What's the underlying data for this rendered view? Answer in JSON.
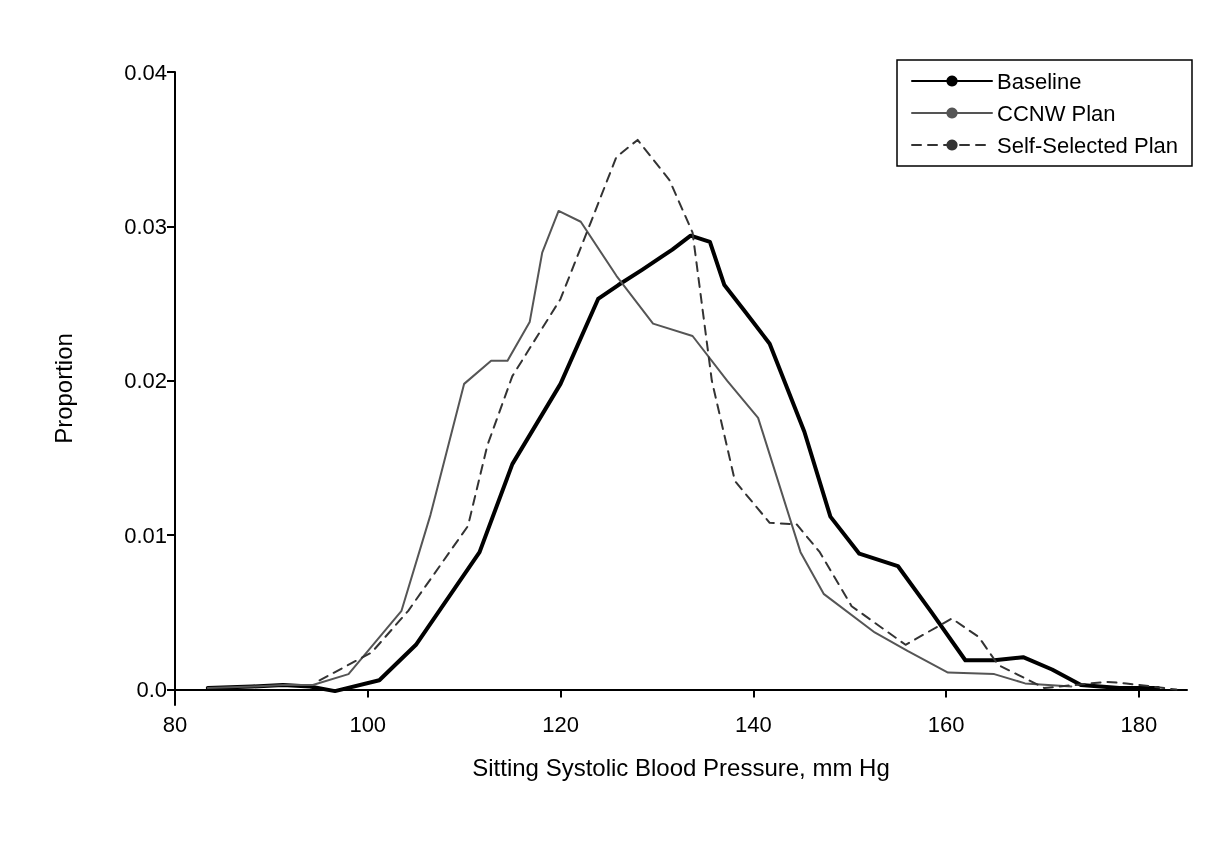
{
  "chart_data": {
    "type": "line",
    "xlabel": "Sitting Systolic Blood Pressure, mm Hg",
    "ylabel": "Proportion",
    "xlim": [
      80,
      185
    ],
    "xticks": [
      80,
      100,
      120,
      140,
      160,
      180
    ],
    "ylim": [
      -0.001,
      0.04
    ],
    "yticks": [
      {
        "value": 0,
        "label": "0.0"
      },
      0.01,
      0.02,
      0.03,
      0.04
    ],
    "grid": false,
    "legend": "top right",
    "marker": "none",
    "series": [
      {
        "name": "Baseline",
        "color": "#000000",
        "line_style": "solid",
        "x": [
          83.4,
          88,
          91.2,
          94,
          96.6,
          101.2,
          105,
          111.6,
          115,
          120,
          123.9,
          126,
          128.5,
          131.6,
          133.5,
          135.5,
          137,
          139,
          141.7,
          145.3,
          148,
          151,
          155,
          158.5,
          162,
          165,
          168,
          171,
          174,
          178,
          182
        ],
        "values": [
          0.0001,
          0.0002,
          0.0003,
          0.0002,
          -0.0001,
          0.0006,
          0.0029,
          0.0089,
          0.0146,
          0.0198,
          0.0253,
          0.0262,
          0.0272,
          0.0285,
          0.0294,
          0.029,
          0.0262,
          0.0246,
          0.0224,
          0.0167,
          0.0112,
          0.0088,
          0.008,
          0.005,
          0.0019,
          0.0019,
          0.0021,
          0.0013,
          0.0003,
          0.0001,
          0.0001
        ]
      },
      {
        "name": "CCNW Plan",
        "color": "#555555",
        "line_style": "solid",
        "x": [
          83.4,
          88,
          91.2,
          94.3,
          98,
          103.5,
          106.5,
          110,
          112.8,
          114.5,
          116.8,
          118.1,
          119.8,
          122.1,
          125.8,
          129.6,
          133.7,
          137.3,
          140.5,
          144.9,
          147.3,
          152.6,
          156,
          160.2,
          165,
          168.2,
          173
        ],
        "values": [
          0.0001,
          0.0002,
          0.0003,
          0.0003,
          0.001,
          0.0051,
          0.0113,
          0.0198,
          0.0213,
          0.0213,
          0.0238,
          0.0283,
          0.031,
          0.0303,
          0.0268,
          0.0237,
          0.0229,
          0.02,
          0.0176,
          0.0089,
          0.0062,
          0.0037,
          0.0025,
          0.0011,
          0.001,
          0.0004,
          0.0002
        ]
      },
      {
        "name": "Self-Selected Plan",
        "color": "#333333",
        "line_style": "dashed",
        "x": [
          95,
          100.4,
          104.2,
          110.4,
          112.4,
          115,
          120,
          123.1,
          125.8,
          128,
          131.3,
          133.7,
          135.7,
          138.1,
          141.7,
          144.5,
          146.9,
          150.2,
          155.8,
          160.6,
          163.4,
          165.4,
          170.2,
          176.7,
          178.7,
          183.9
        ],
        "values": [
          0.0006,
          0.0024,
          0.0051,
          0.0106,
          0.0158,
          0.0203,
          0.0253,
          0.0302,
          0.0345,
          0.0356,
          0.033,
          0.0296,
          0.02,
          0.0135,
          0.0108,
          0.0107,
          0.0089,
          0.0054,
          0.0029,
          0.0046,
          0.0034,
          0.0016,
          0.0001,
          0.0005,
          0.0004,
          0.0
        ]
      }
    ]
  }
}
